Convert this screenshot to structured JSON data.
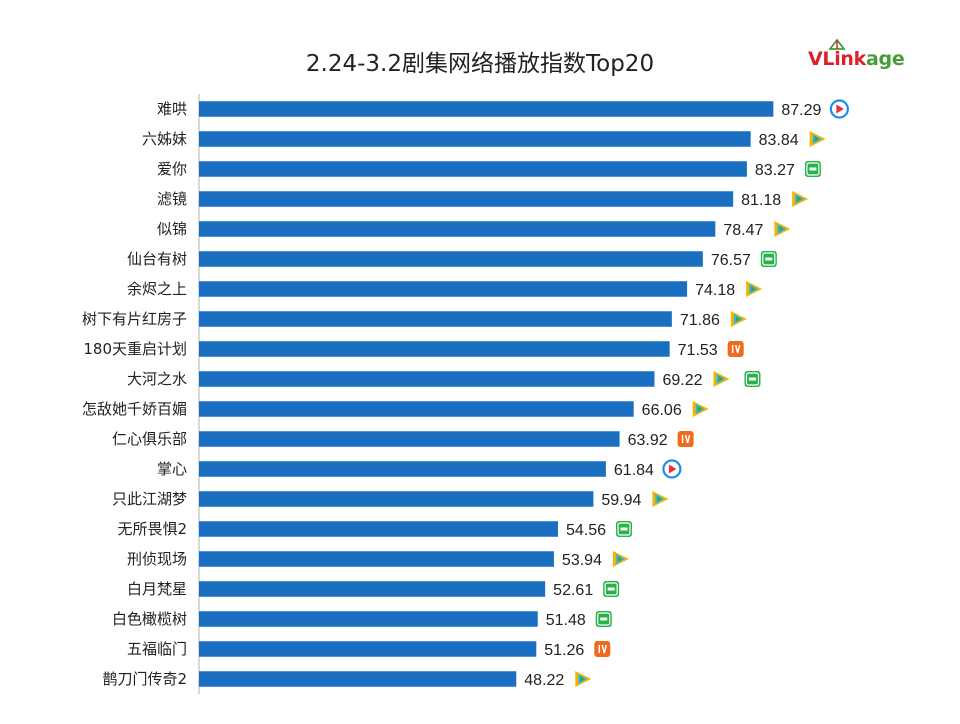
{
  "logo": {
    "part1": "VLink",
    "part2": "age"
  },
  "colors": {
    "bar": "#1a6fc0",
    "tencent": [
      "#f7b500",
      "#2bb7f0",
      "#3aa447"
    ],
    "iqiyi": "#27b24a",
    "mango": "#ee6b1e",
    "youku": "#1d8cf0"
  },
  "chart_data": {
    "type": "bar",
    "orientation": "horizontal",
    "title": "2.24-3.2剧集网络播放指数Top20",
    "categories": [
      "难哄",
      "六姊妹",
      "爱你",
      "滤镜",
      "似锦",
      "仙台有树",
      "余烬之上",
      "树下有片红房子",
      "180天重启计划",
      "大河之水",
      "怎敌她千娇百媚",
      "仁心俱乐部",
      "掌心",
      "只此江湖梦",
      "无所畏惧2",
      "刑侦现场",
      "白月梵星",
      "白色橄榄树",
      "五福临门",
      "鹊刀门传奇2"
    ],
    "values": [
      87.29,
      83.84,
      83.27,
      81.18,
      78.47,
      76.57,
      74.18,
      71.86,
      71.53,
      69.22,
      66.06,
      63.92,
      61.84,
      59.94,
      54.56,
      53.94,
      52.61,
      51.48,
      51.26,
      48.22
    ],
    "value_labels": [
      "87.29",
      "83.84",
      "83.27",
      "81.18",
      "78.47",
      "76.57",
      "74.18",
      "71.86",
      "71.53",
      "69.22",
      "66.06",
      "63.92",
      "61.84",
      "59.94",
      "54.56",
      "53.94",
      "52.61",
      "51.48",
      "51.26",
      "48.22"
    ],
    "platforms": [
      [
        "youku"
      ],
      [
        "tencent"
      ],
      [
        "iqiyi"
      ],
      [
        "tencent"
      ],
      [
        "tencent"
      ],
      [
        "iqiyi"
      ],
      [
        "tencent"
      ],
      [
        "tencent"
      ],
      [
        "mango"
      ],
      [
        "tencent",
        "iqiyi"
      ],
      [
        "tencent"
      ],
      [
        "mango"
      ],
      [
        "youku"
      ],
      [
        "tencent"
      ],
      [
        "iqiyi"
      ],
      [
        "tencent"
      ],
      [
        "iqiyi"
      ],
      [
        "iqiyi"
      ],
      [
        "mango"
      ],
      [
        "tencent"
      ]
    ],
    "xlim": [
      0,
      87.29
    ],
    "grid": false
  }
}
